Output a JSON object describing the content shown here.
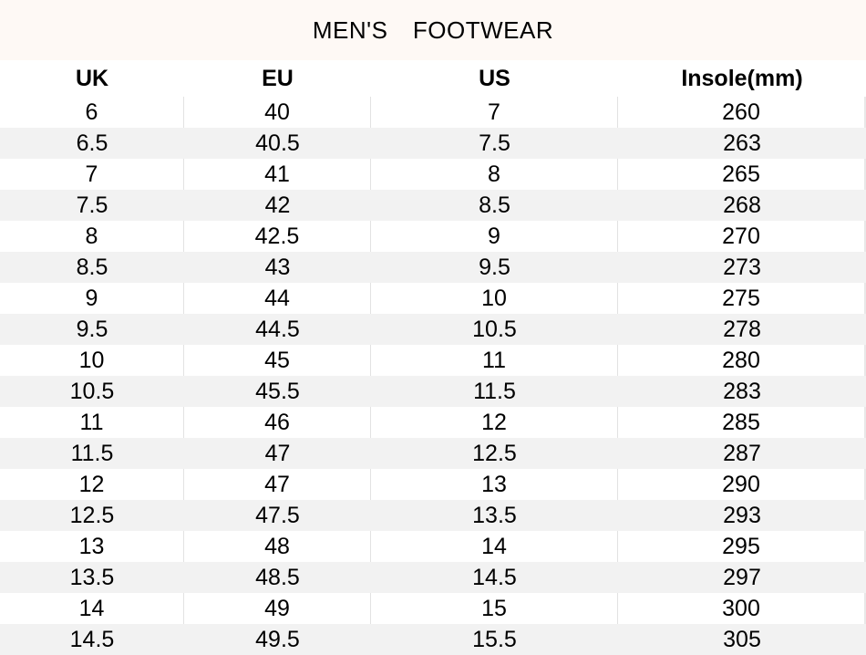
{
  "title": "MEN'S  FOOTWEAR",
  "headers": [
    "UK",
    "EU",
    "US",
    "Insole(mm)"
  ],
  "rows": [
    [
      "6",
      "40",
      "7",
      "260"
    ],
    [
      "6.5",
      "40.5",
      "7.5",
      "263"
    ],
    [
      "7",
      "41",
      "8",
      "265"
    ],
    [
      "7.5",
      "42",
      "8.5",
      "268"
    ],
    [
      "8",
      "42.5",
      "9",
      "270"
    ],
    [
      "8.5",
      "43",
      "9.5",
      "273"
    ],
    [
      "9",
      "44",
      "10",
      "275"
    ],
    [
      "9.5",
      "44.5",
      "10.5",
      "278"
    ],
    [
      "10",
      "45",
      "11",
      "280"
    ],
    [
      "10.5",
      "45.5",
      "11.5",
      "283"
    ],
    [
      "11",
      "46",
      "12",
      "285"
    ],
    [
      "11.5",
      "47",
      "12.5",
      "287"
    ],
    [
      "12",
      "47",
      "13",
      "290"
    ],
    [
      "12.5",
      "47.5",
      "13.5",
      "293"
    ],
    [
      "13",
      "48",
      "14",
      "295"
    ],
    [
      "13.5",
      "48.5",
      "14.5",
      "297"
    ],
    [
      "14",
      "49",
      "15",
      "300"
    ],
    [
      "14.5",
      "49.5",
      "15.5",
      "305"
    ]
  ],
  "colors": {
    "title_bg": "#fef9f5",
    "stripe": "#f2f2f2"
  }
}
